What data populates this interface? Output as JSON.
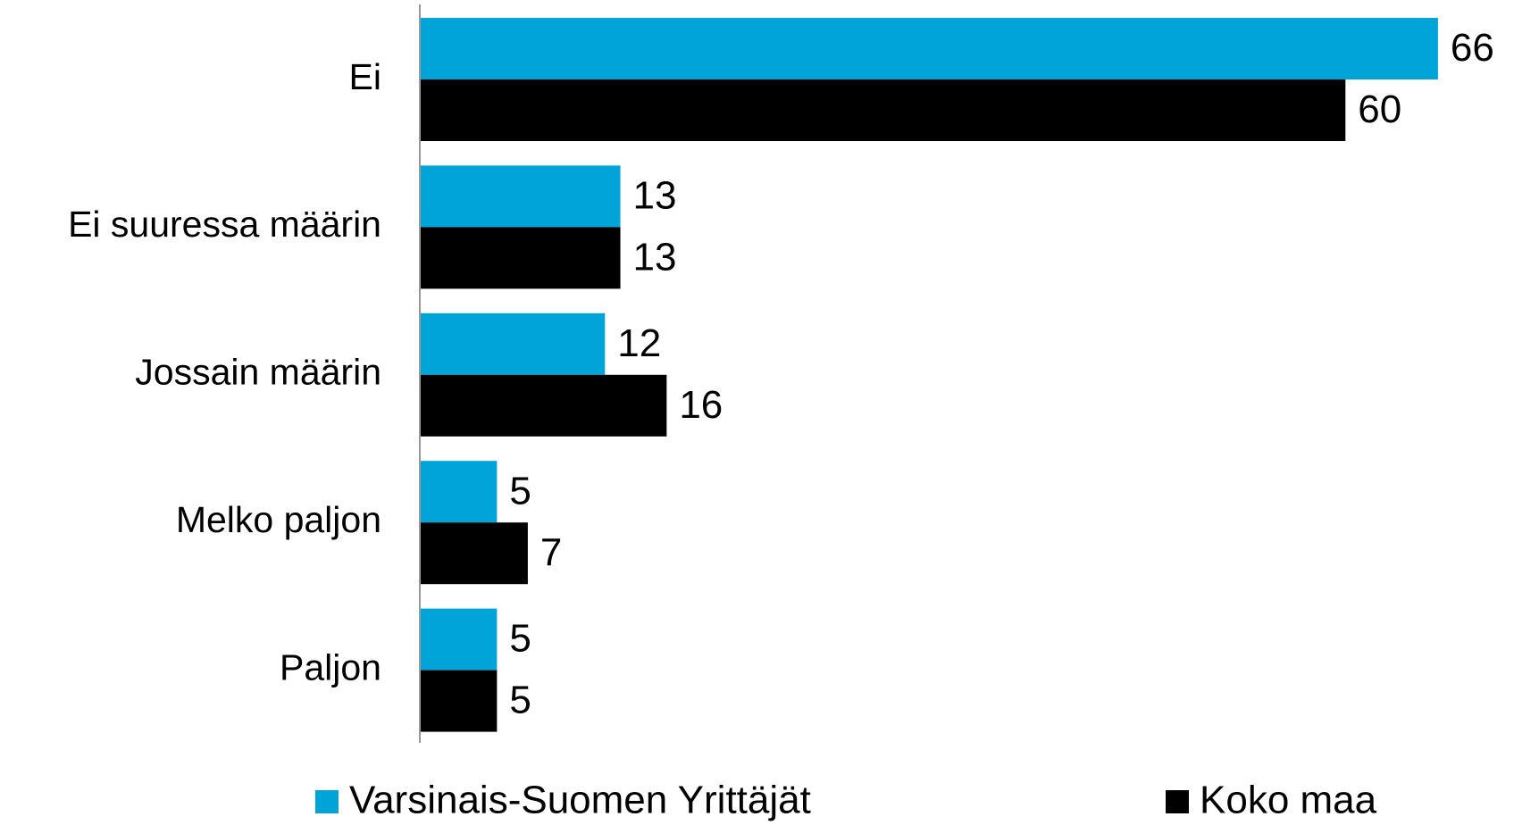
{
  "chart_data": {
    "type": "hbar",
    "categories": [
      "Ei",
      "Ei suuressa määrin",
      "Jossain määrin",
      "Melko paljon",
      "Paljon"
    ],
    "series": [
      {
        "name": "Varsinais-Suomen Yrittäjät",
        "color": "#00a4d8",
        "values": [
          66,
          13,
          12,
          5,
          5
        ]
      },
      {
        "name": "Koko maa",
        "color": "#000000",
        "values": [
          60,
          13,
          16,
          7,
          5
        ]
      }
    ],
    "xlim": [
      0,
      70
    ],
    "legend": "bottom"
  }
}
